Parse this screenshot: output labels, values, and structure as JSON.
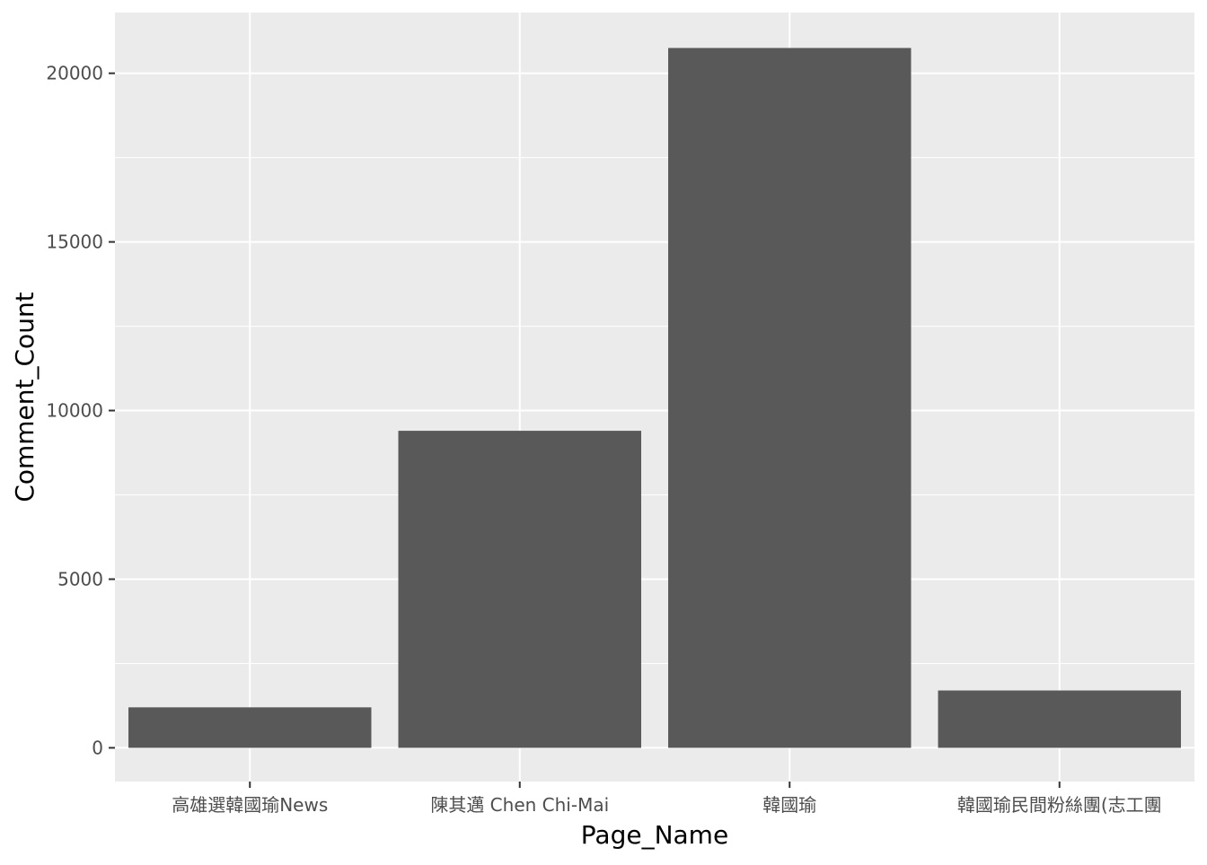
{
  "chart_data": {
    "type": "bar",
    "categories": [
      "高雄選韓國瑜News",
      "陳其邁 Chen Chi-Mai",
      "韓國瑜",
      "韓國瑜民間粉絲團(志工團"
    ],
    "values": [
      1200,
      9400,
      20750,
      1700
    ],
    "xlabel": "Page_Name",
    "ylabel": "Comment_Count",
    "ylim": [
      -1000,
      21800
    ],
    "yticks": [
      0,
      5000,
      10000,
      15000,
      20000
    ],
    "ytick_labels": [
      "0",
      "5000",
      "10000",
      "15000",
      "20000"
    ],
    "grid": true,
    "legend": "none",
    "colors": {
      "panel_background": "#ebebeb",
      "grid": "#ffffff",
      "bar": "#595959",
      "tick": "#333333"
    }
  }
}
